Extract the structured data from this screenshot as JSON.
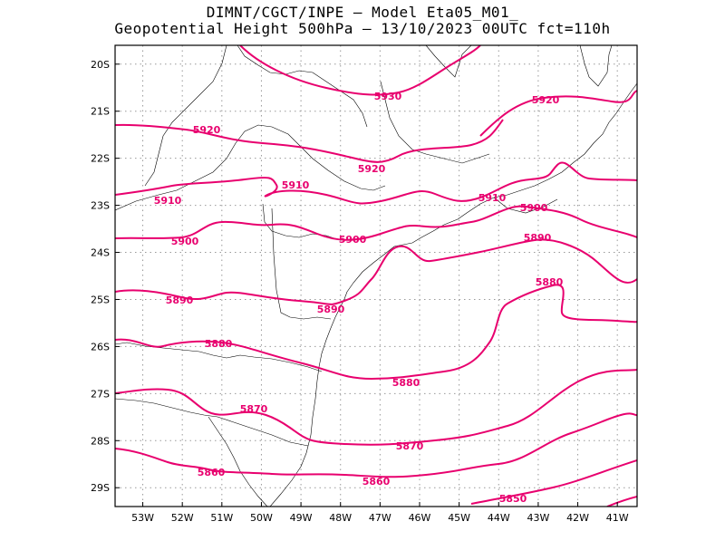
{
  "title_line1": "DIMNT/CGCT/INPE –  Model Eta05_M01_",
  "title_line2": "Geopotential Height 500hPa –  13/10/2023 00UTC fct=110h",
  "colors": {
    "contour": "#e8006e",
    "coast": "#000000",
    "grid": "#999999"
  },
  "chart_data": {
    "type": "contour-map",
    "variable": "Geopotential Height 500hPa",
    "lon_range": [
      -53.7,
      -40.5
    ],
    "lat_range": [
      -29.4,
      -19.6
    ],
    "lon_ticks": [
      "53W",
      "52W",
      "51W",
      "50W",
      "49W",
      "48W",
      "47W",
      "46W",
      "45W",
      "44W",
      "43W",
      "42W",
      "41W"
    ],
    "lat_ticks": [
      "20S",
      "21S",
      "22S",
      "23S",
      "24S",
      "25S",
      "26S",
      "27S",
      "28S",
      "29S"
    ],
    "contour_labels": [
      "5930",
      "5920",
      "5920",
      "5920",
      "5910",
      "5910",
      "5910",
      "5900",
      "5900",
      "5900",
      "5890",
      "5890",
      "5890",
      "5880",
      "5880",
      "5880",
      "5870",
      "5870",
      "5860",
      "5860",
      "5850"
    ],
    "grid": "dotted"
  }
}
